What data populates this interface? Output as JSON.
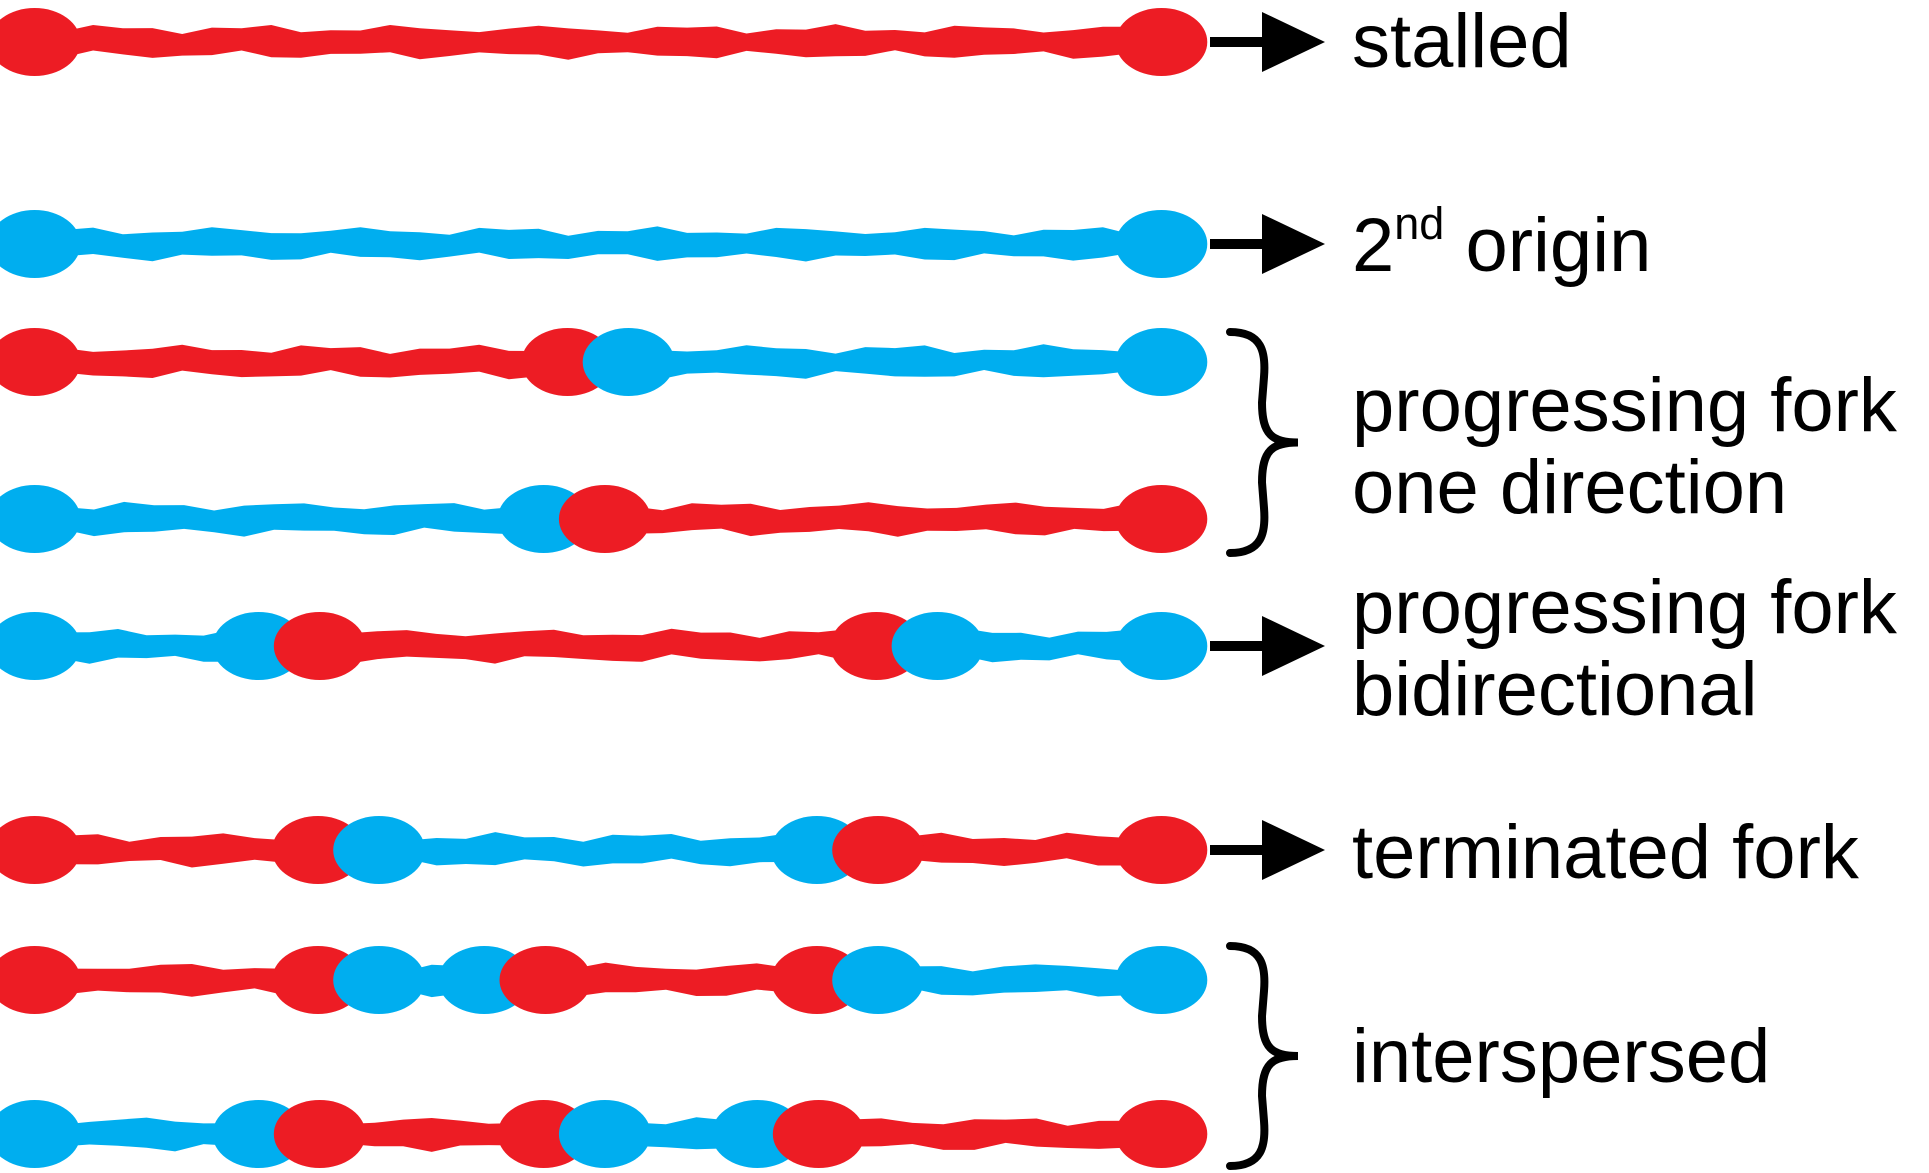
{
  "colors": {
    "red": "#ed1c24",
    "blue": "#00aeef",
    "ink": "#000000"
  },
  "rows": [
    {
      "id": "stalled",
      "segments": [
        [
          "red",
          0,
          1
        ]
      ]
    },
    {
      "id": "second-origin",
      "segments": [
        [
          "blue",
          0,
          1
        ]
      ]
    },
    {
      "id": "one-dir-a",
      "segments": [
        [
          "red",
          0,
          0.5
        ],
        [
          "blue",
          0.5,
          1
        ]
      ]
    },
    {
      "id": "one-dir-b",
      "segments": [
        [
          "blue",
          0,
          0.48
        ],
        [
          "red",
          0.48,
          1
        ]
      ]
    },
    {
      "id": "bidirectional",
      "segments": [
        [
          "blue",
          0,
          0.24
        ],
        [
          "red",
          0.24,
          0.76
        ],
        [
          "blue",
          0.76,
          1
        ]
      ]
    },
    {
      "id": "terminated",
      "segments": [
        [
          "red",
          0,
          0.29
        ],
        [
          "blue",
          0.29,
          0.71
        ],
        [
          "red",
          0.71,
          1
        ]
      ]
    },
    {
      "id": "intersp-a",
      "segments": [
        [
          "red",
          0,
          0.29
        ],
        [
          "blue",
          0.29,
          0.43
        ],
        [
          "red",
          0.43,
          0.71
        ],
        [
          "blue",
          0.71,
          1
        ]
      ]
    },
    {
      "id": "intersp-b",
      "segments": [
        [
          "blue",
          0,
          0.24
        ],
        [
          "red",
          0.24,
          0.48
        ],
        [
          "blue",
          0.48,
          0.66
        ],
        [
          "red",
          0.66,
          1
        ]
      ]
    }
  ],
  "labels": {
    "stalled": "stalled",
    "second_origin_num": "2",
    "second_origin_sup": "nd",
    "second_origin_text": " origin",
    "progressing_one_line1": "progressing fork",
    "progressing_one_line2": "one direction",
    "progressing_bi_line1": "progressing fork",
    "progressing_bi_line2": "bidirectional",
    "terminated": "terminated fork",
    "interspersed": "interspersed"
  },
  "arrows": [
    "stalled",
    "second-origin",
    "bidirectional",
    "terminated"
  ],
  "braces": [
    "one-direction",
    "interspersed"
  ]
}
